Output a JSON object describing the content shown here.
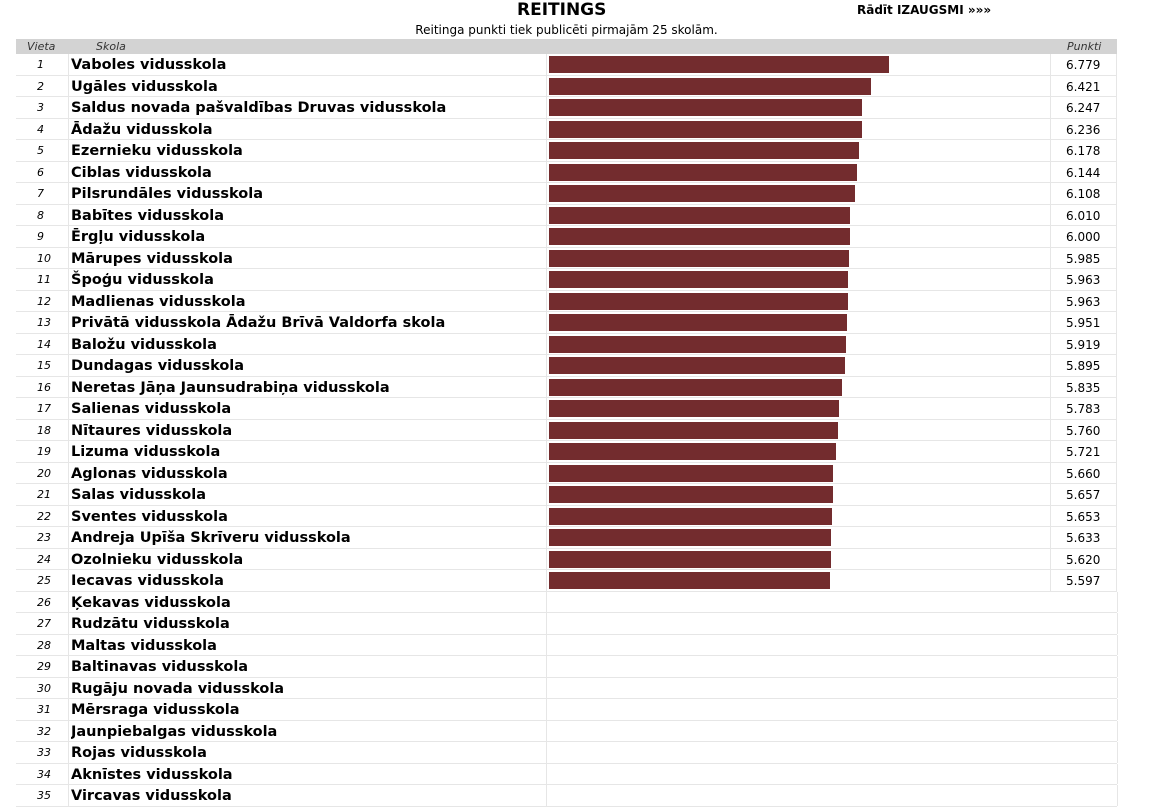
{
  "header": {
    "title": "REITINGS",
    "toggle_label": "Rādīt IZAUGSMI »»»",
    "subtitle": "Reitinga punkti tiek publicēti pirmajām 25 skolām."
  },
  "columns": {
    "rank": "Vieta",
    "school": "Skola",
    "points": "Punkti"
  },
  "colors": {
    "bar": "#732c2e",
    "header_bg": "#d3d3d3"
  },
  "rows": [
    {
      "rank": "1",
      "school": "Vaboles vidusskola",
      "points": "6.779"
    },
    {
      "rank": "2",
      "school": "Ugāles vidusskola",
      "points": "6.421"
    },
    {
      "rank": "3",
      "school": "Saldus novada pašvaldības Druvas vidusskola",
      "points": "6.247"
    },
    {
      "rank": "4",
      "school": "Ādažu vidusskola",
      "points": "6.236"
    },
    {
      "rank": "5",
      "school": "Ezernieku vidusskola",
      "points": "6.178"
    },
    {
      "rank": "6",
      "school": "Ciblas vidusskola",
      "points": "6.144"
    },
    {
      "rank": "7",
      "school": "Pilsrundāles vidusskola",
      "points": "6.108"
    },
    {
      "rank": "8",
      "school": "Babītes vidusskola",
      "points": "6.010"
    },
    {
      "rank": "9",
      "school": "Ērgļu vidusskola",
      "points": "6.000"
    },
    {
      "rank": "10",
      "school": "Mārupes vidusskola",
      "points": "5.985"
    },
    {
      "rank": "11",
      "school": "Špoģu vidusskola",
      "points": "5.963"
    },
    {
      "rank": "12",
      "school": "Madlienas vidusskola",
      "points": "5.963"
    },
    {
      "rank": "13",
      "school": "Privātā vidusskola Ādažu Brīvā Valdorfa skola",
      "points": "5.951"
    },
    {
      "rank": "14",
      "school": "Baložu vidusskola",
      "points": "5.919"
    },
    {
      "rank": "15",
      "school": "Dundagas vidusskola",
      "points": "5.895"
    },
    {
      "rank": "16",
      "school": "Neretas Jāņa Jaunsudrabiņa vidusskola",
      "points": "5.835"
    },
    {
      "rank": "17",
      "school": "Salienas vidusskola",
      "points": "5.783"
    },
    {
      "rank": "18",
      "school": "Nītaures vidusskola",
      "points": "5.760"
    },
    {
      "rank": "19",
      "school": "Lizuma vidusskola",
      "points": "5.721"
    },
    {
      "rank": "20",
      "school": "Aglonas vidusskola",
      "points": "5.660"
    },
    {
      "rank": "21",
      "school": "Salas vidusskola",
      "points": "5.657"
    },
    {
      "rank": "22",
      "school": "Sventes vidusskola",
      "points": "5.653"
    },
    {
      "rank": "23",
      "school": "Andreja Upīša Skrīveru vidusskola",
      "points": "5.633"
    },
    {
      "rank": "24",
      "school": "Ozolnieku vidusskola",
      "points": "5.620"
    },
    {
      "rank": "25",
      "school": "Iecavas vidusskola",
      "points": "5.597"
    },
    {
      "rank": "26",
      "school": "Ķekavas vidusskola",
      "points": ""
    },
    {
      "rank": "27",
      "school": "Rudzātu vidusskola",
      "points": ""
    },
    {
      "rank": "28",
      "school": "Maltas vidusskola",
      "points": ""
    },
    {
      "rank": "29",
      "school": "Baltinavas vidusskola",
      "points": ""
    },
    {
      "rank": "30",
      "school": "Rugāju novada vidusskola",
      "points": ""
    },
    {
      "rank": "31",
      "school": "Mērsraga vidusskola",
      "points": ""
    },
    {
      "rank": "32",
      "school": "Jaunpiebalgas vidusskola",
      "points": ""
    },
    {
      "rank": "33",
      "school": "Rojas vidusskola",
      "points": ""
    },
    {
      "rank": "34",
      "school": "Aknīstes vidusskola",
      "points": ""
    },
    {
      "rank": "35",
      "school": "Vircavas vidusskola",
      "points": ""
    }
  ]
}
